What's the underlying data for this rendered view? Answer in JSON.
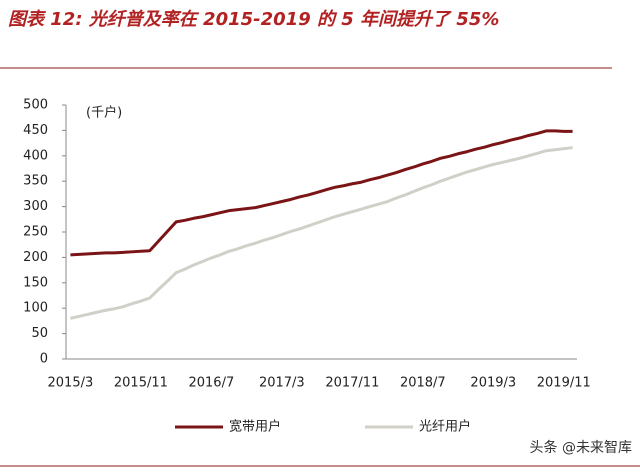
{
  "chart_data": {
    "type": "line",
    "title": "图表 12: 光纤普及率在 2015-2019 的 5 年间提升了 55%",
    "unit_label": "(千户)",
    "source": "头条 @未来智库",
    "categories": [
      "2015/3",
      null,
      null,
      null,
      null,
      null,
      null,
      null,
      "2015/11",
      null,
      null,
      null,
      null,
      null,
      null,
      null,
      "2016/7",
      null,
      null,
      null,
      null,
      null,
      null,
      null,
      "2017/3",
      null,
      null,
      null,
      null,
      null,
      null,
      null,
      "2017/11",
      null,
      null,
      null,
      null,
      null,
      null,
      null,
      "2018/7",
      null,
      null,
      null,
      null,
      null,
      null,
      null,
      "2019/3",
      null,
      null,
      null,
      null,
      null,
      null,
      null,
      "2019/11",
      null
    ],
    "series": [
      {
        "name": "宽带用户",
        "color": "#7b1416",
        "values": [
          205,
          206,
          207,
          208,
          209,
          209,
          210,
          211,
          212,
          213,
          232,
          251,
          270,
          273,
          277,
          280,
          284,
          288,
          292,
          294,
          296,
          298,
          302,
          306,
          310,
          314,
          319,
          323,
          328,
          333,
          338,
          341,
          345,
          348,
          353,
          357,
          362,
          367,
          373,
          378,
          384,
          389,
          395,
          399,
          404,
          408,
          413,
          417,
          422,
          426,
          431,
          435,
          440,
          444,
          449,
          449,
          448,
          448
        ]
      },
      {
        "name": "光纤用户",
        "color": "#d0cfc8",
        "values": [
          80,
          84,
          88,
          92,
          96,
          99,
          103,
          109,
          114,
          120,
          137,
          153,
          170,
          177,
          185,
          192,
          199,
          205,
          212,
          217,
          223,
          228,
          234,
          239,
          245,
          251,
          256,
          262,
          268,
          274,
          280,
          285,
          290,
          295,
          300,
          305,
          310,
          317,
          323,
          330,
          337,
          343,
          350,
          356,
          362,
          368,
          373,
          378,
          383,
          387,
          391,
          395,
          400,
          405,
          410,
          412,
          414,
          416
        ]
      }
    ],
    "ylim": [
      0,
      500
    ],
    "yticks": [
      0,
      50,
      100,
      150,
      200,
      250,
      300,
      350,
      400,
      450,
      500
    ],
    "grid": false
  }
}
